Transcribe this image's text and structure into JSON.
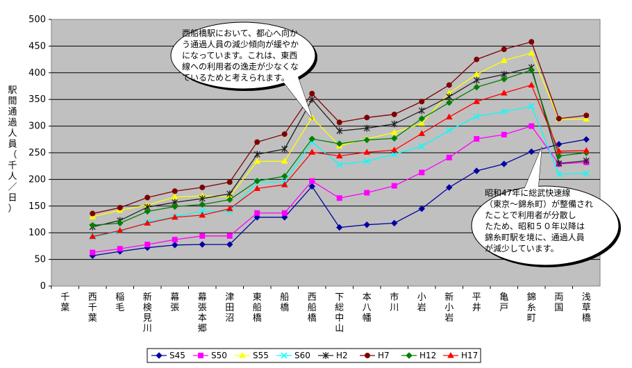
{
  "chart_data": {
    "type": "line",
    "title": "",
    "ylabel": "駅間通過人員（千人／日）",
    "xlabel": "",
    "ylim": [
      0,
      500
    ],
    "yticks": [
      0,
      50,
      100,
      150,
      200,
      250,
      300,
      350,
      400,
      450,
      500
    ],
    "grid": true,
    "legend_position": "bottom",
    "categories": [
      "千葉",
      "西千葉",
      "稲毛",
      "新検見川",
      "幕張",
      "幕張本郷",
      "津田沼",
      "東船橋",
      "船橋",
      "西船橋",
      "下総中山",
      "本八幡",
      "市川",
      "小岩",
      "新小岩",
      "平井",
      "亀戸",
      "錦糸町",
      "両国",
      "浅草橋"
    ],
    "series": [
      {
        "name": "S45",
        "color": "#0000a0",
        "marker": "diamond",
        "values": [
          null,
          57,
          65,
          72,
          77,
          78,
          78,
          129,
          129,
          187,
          110,
          115,
          118,
          145,
          185,
          216,
          229,
          252,
          266,
          275
        ]
      },
      {
        "name": "S50",
        "color": "#ff00ff",
        "marker": "square",
        "values": [
          null,
          63,
          70,
          78,
          87,
          94,
          94,
          137,
          137,
          197,
          165,
          175,
          188,
          213,
          241,
          276,
          284,
          300,
          229,
          232
        ]
      },
      {
        "name": "S55",
        "color": "#ffff00",
        "marker": "triangle",
        "values": [
          null,
          130,
          142,
          152,
          167,
          169,
          168,
          234,
          234,
          316,
          263,
          276,
          288,
          305,
          362,
          397,
          423,
          437,
          313,
          313
        ]
      },
      {
        "name": "S60",
        "color": "#00ffff",
        "marker": "x",
        "values": [
          null,
          92,
          102,
          120,
          130,
          140,
          140,
          195,
          195,
          270,
          228,
          234,
          247,
          262,
          292,
          318,
          327,
          337,
          210,
          211
        ]
      },
      {
        "name": "H2",
        "color": "#202020",
        "marker": "star",
        "values": [
          null,
          111,
          123,
          148,
          157,
          164,
          173,
          247,
          257,
          350,
          291,
          296,
          304,
          329,
          355,
          386,
          397,
          410,
          230,
          235
        ]
      },
      {
        "name": "H7",
        "color": "#800000",
        "marker": "circle",
        "values": [
          null,
          136,
          147,
          166,
          178,
          185,
          195,
          270,
          285,
          361,
          307,
          316,
          322,
          346,
          377,
          425,
          444,
          458,
          314,
          320
        ]
      },
      {
        "name": "H12",
        "color": "#008000",
        "marker": "diamond",
        "values": [
          null,
          114,
          118,
          140,
          149,
          153,
          162,
          197,
          206,
          276,
          267,
          274,
          277,
          314,
          344,
          373,
          388,
          405,
          244,
          250
        ]
      },
      {
        "name": "H17",
        "color": "#ff0000",
        "marker": "triangle",
        "values": [
          null,
          93,
          104,
          118,
          129,
          133,
          145,
          183,
          190,
          251,
          244,
          251,
          255,
          286,
          317,
          346,
          362,
          377,
          253,
          254
        ]
      }
    ],
    "annotations": [
      {
        "text": "西船橋駅において、都心へ向かう通過人員の減少傾向が緩やかになっています。これは、東西線への利用者の逸走が少なくなっているためと考えられます。",
        "lines": [
          "西船橋駅において、都心へ向か",
          "う通過人員の減少傾向が緩やか",
          "になっています。これは、東西",
          "線への利用者の逸走が少なくな",
          "ているためと考えられます。"
        ],
        "points_to": "西船橋"
      },
      {
        "text": "昭和47年に総武快速線（東京～錦糸町）が整備されたことで利用者が分散したため、昭和５０年以降は錦糸町駅を境に、通過人員が減少しています。",
        "lines": [
          "昭和47年に総武快速線",
          "（東京～錦糸町）が整備され",
          "たことで利用者が分散し",
          "たため、昭和５０年以降は",
          "錦糸町駅を境に、通過人員",
          "が減少しています。"
        ],
        "points_to": "錦糸町"
      }
    ]
  }
}
